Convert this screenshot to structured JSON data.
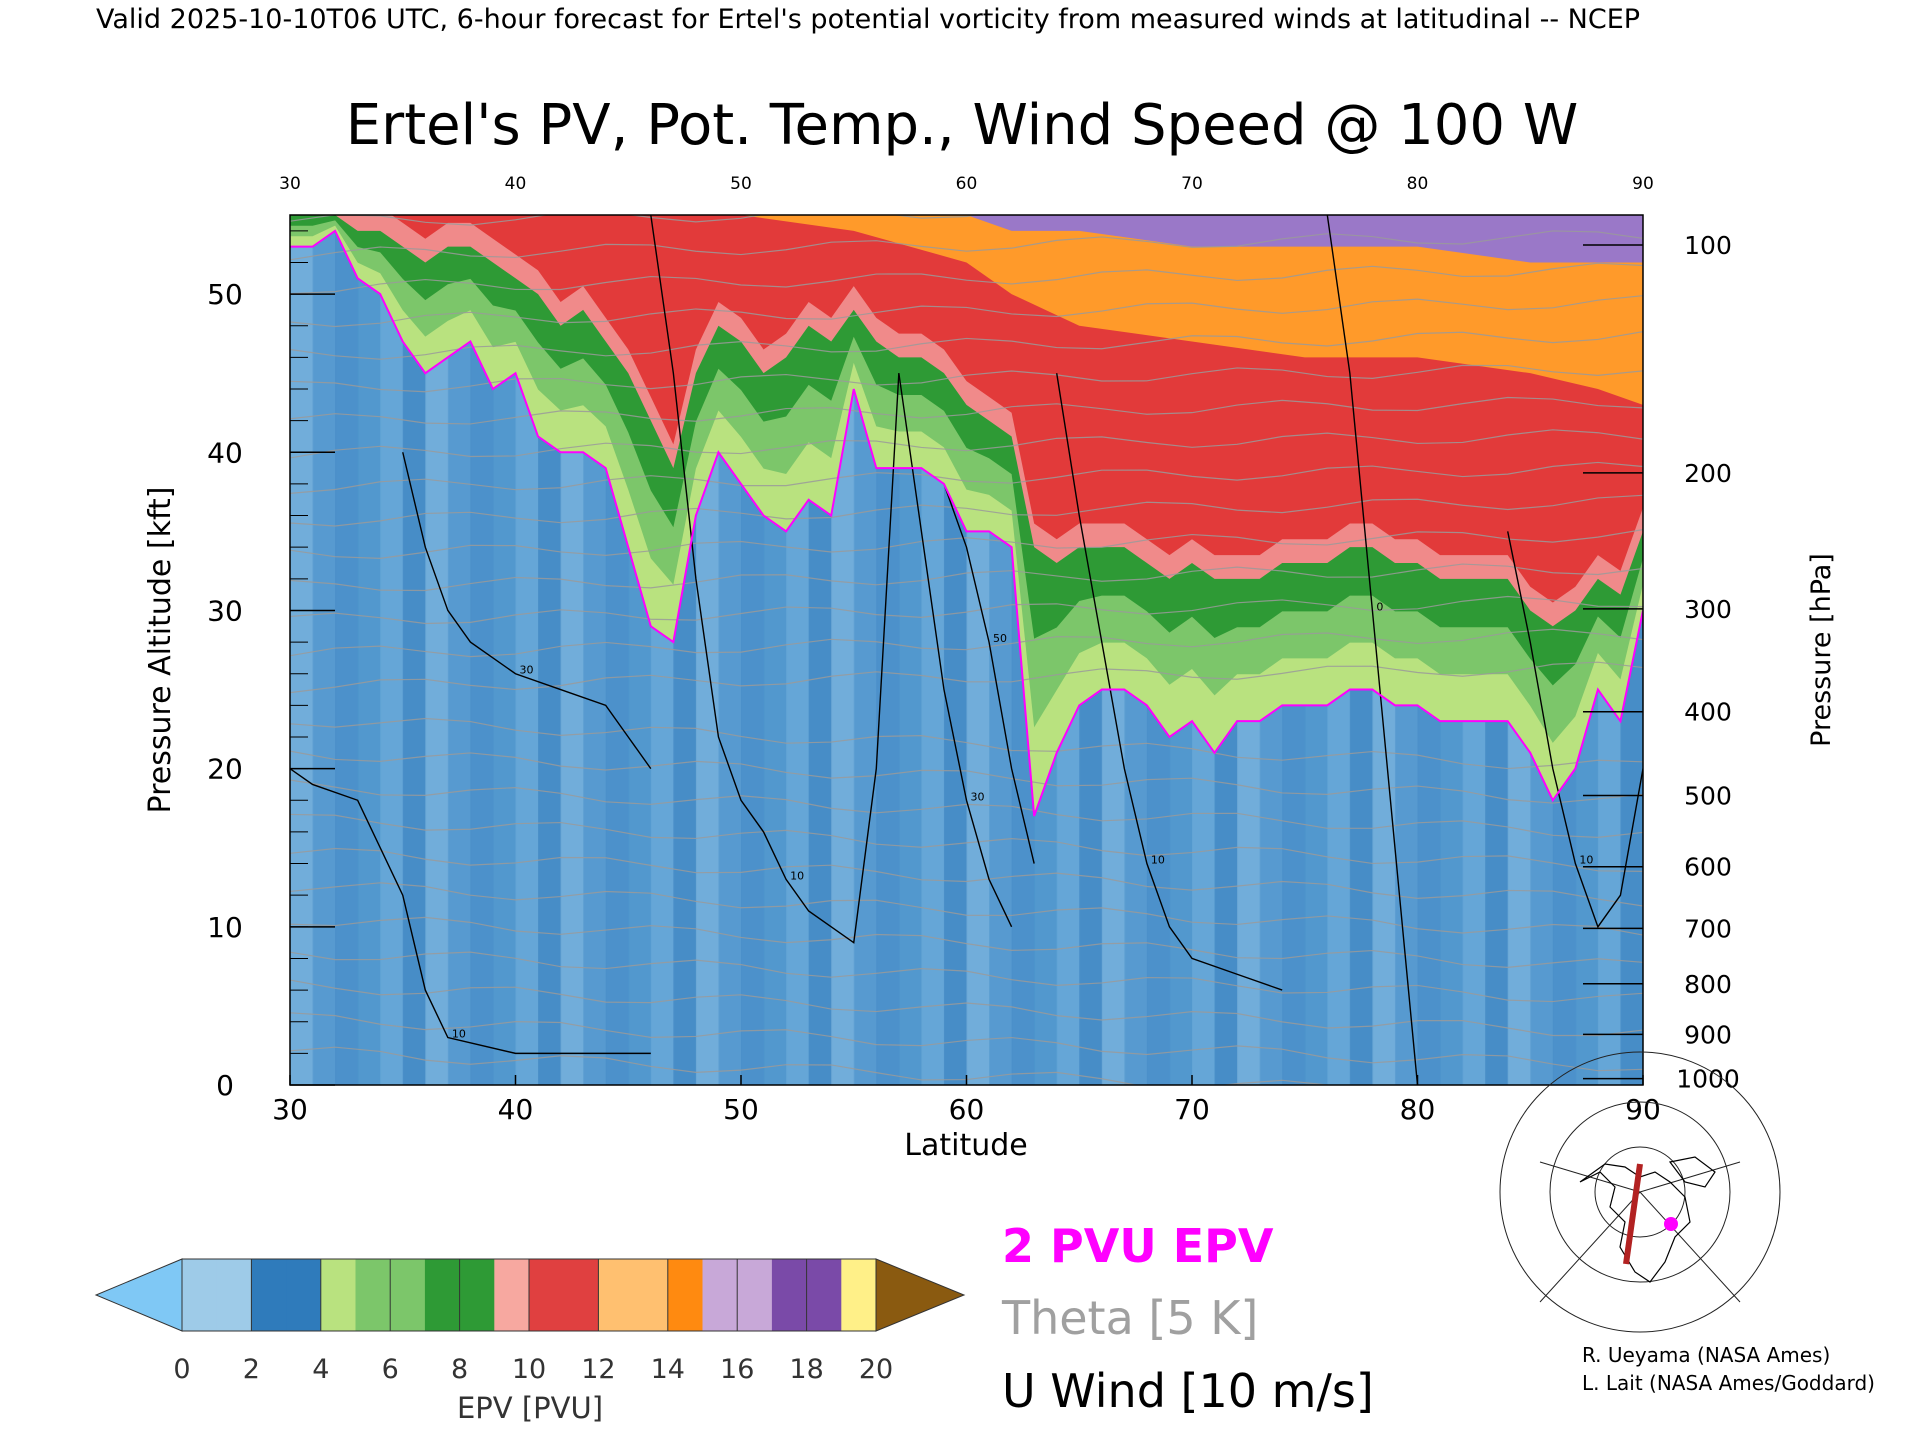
{
  "header": {
    "valid_line": "Valid 2025-10-10T06 UTC, 6-hour forecast for Ertel's potential vorticity from measured winds at latitudinal -- NCEP"
  },
  "chart_data": {
    "type": "heatmap",
    "title": "Ertel's PV, Pot. Temp., Wind Speed @ 100 W",
    "xlabel": "Latitude",
    "ylabel_left": "Pressure Altitude [kft]",
    "ylabel_right": "Pressure [hPa]",
    "xlim": [
      30,
      90
    ],
    "ylim": [
      0,
      55
    ],
    "x_ticks": [
      "30",
      "40",
      "50",
      "60",
      "70",
      "80",
      "90"
    ],
    "y_ticks": [
      {
        "v": 0,
        "label": "0"
      },
      {
        "v": 10,
        "label": "10"
      },
      {
        "v": 20,
        "label": "20"
      },
      {
        "v": 30,
        "label": "30"
      },
      {
        "v": 40,
        "label": "40"
      },
      {
        "v": 50,
        "label": "50"
      }
    ],
    "pressure_ticks": [
      {
        "label": "100",
        "kft": 53.1
      },
      {
        "label": "200",
        "kft": 38.7
      },
      {
        "label": "300",
        "kft": 30.1
      },
      {
        "label": "400",
        "kft": 23.6
      },
      {
        "label": "500",
        "kft": 18.3
      },
      {
        "label": "600",
        "kft": 13.8
      },
      {
        "label": "700",
        "kft": 9.9
      },
      {
        "label": "800",
        "kft": 6.4
      },
      {
        "label": "900",
        "kft": 3.2
      },
      {
        "label": "1000",
        "kft": 0.4
      }
    ],
    "pv_2_contour_kft": {
      "lat": [
        30,
        31,
        32,
        33,
        34,
        35,
        36,
        37,
        38,
        39,
        40,
        41,
        42,
        43,
        44,
        45,
        46,
        47,
        48,
        49,
        50,
        51,
        52,
        53,
        54,
        55,
        56,
        57,
        58,
        59,
        60,
        61,
        62,
        63,
        64,
        65,
        66,
        67,
        68,
        69,
        70,
        71,
        72,
        73,
        74,
        75,
        76,
        77,
        78,
        79,
        80,
        81,
        82,
        83,
        84,
        85,
        86,
        87,
        88,
        89,
        90
      ],
      "kft": [
        53,
        53,
        54,
        51,
        50,
        47,
        45,
        46,
        47,
        44,
        45,
        41,
        40,
        40,
        39,
        34,
        29,
        28,
        36,
        40,
        38,
        36,
        35,
        37,
        36,
        44,
        39,
        39,
        39,
        38,
        35,
        35,
        34,
        17,
        21,
        24,
        25,
        25,
        24,
        22,
        23,
        21,
        23,
        23,
        24,
        24,
        24,
        25,
        25,
        24,
        24,
        23,
        23,
        23,
        23,
        21,
        18,
        20,
        25,
        23,
        30
      ]
    },
    "tropopause_band_kft": {
      "lat": [
        30,
        31,
        32,
        33,
        34,
        35,
        36,
        37,
        38,
        39,
        40,
        41,
        42,
        43,
        44,
        45,
        46,
        47,
        48,
        49,
        50,
        51,
        52,
        53,
        54,
        55,
        56,
        57,
        58,
        59,
        60,
        61,
        62,
        63,
        64,
        65,
        66,
        67,
        68,
        69,
        70,
        71,
        72,
        73,
        74,
        75,
        76,
        77,
        78,
        79,
        80,
        81,
        82,
        83,
        84,
        85,
        86,
        87,
        88,
        89,
        90
      ],
      "top_kft": [
        55,
        55,
        55,
        54,
        54,
        53,
        52,
        53,
        53,
        52,
        51,
        50,
        48,
        49,
        47,
        45,
        42,
        39,
        45,
        48,
        47,
        45,
        46,
        48,
        47,
        49,
        47,
        46,
        46,
        45,
        43,
        42,
        41,
        34,
        33,
        34,
        34,
        34,
        33,
        32,
        33,
        32,
        32,
        32,
        33,
        33,
        33,
        34,
        34,
        33,
        33,
        32,
        32,
        32,
        32,
        30,
        29,
        30,
        32,
        31,
        35
      ]
    },
    "stratosphere_levels_kft": {
      "orange_top_lat": [
        30,
        40,
        50,
        55,
        60,
        62,
        65,
        70,
        75,
        80,
        85,
        88,
        90
      ],
      "orange_kft": [
        55,
        55,
        55,
        54,
        52,
        50,
        48,
        47,
        46,
        46,
        45,
        44,
        43
      ],
      "purple_kft": [
        56,
        56,
        56,
        56,
        55,
        54,
        54,
        53,
        53,
        53,
        52,
        52,
        52
      ]
    },
    "u_wind_contours": [
      {
        "label": "10",
        "lat": [
          30,
          31,
          33,
          35,
          36,
          37,
          40,
          42,
          44,
          46
        ],
        "kft": [
          20,
          19,
          18,
          12,
          6,
          3,
          2,
          2,
          2,
          2
        ]
      },
      {
        "label": "30",
        "lat": [
          35,
          36,
          37,
          38,
          40,
          42,
          44,
          45,
          46
        ],
        "kft": [
          40,
          34,
          30,
          28,
          26,
          25,
          24,
          22,
          20
        ]
      },
      {
        "label": "10",
        "lat": [
          46,
          47,
          48,
          49,
          50,
          51,
          52,
          53,
          54,
          55,
          56,
          57
        ],
        "kft": [
          55,
          45,
          32,
          22,
          18,
          16,
          13,
          11,
          10,
          9,
          20,
          45
        ]
      },
      {
        "label": "30",
        "lat": [
          57,
          58,
          59,
          60,
          61,
          62
        ],
        "kft": [
          45,
          35,
          25,
          18,
          13,
          10
        ]
      },
      {
        "label": "50",
        "lat": [
          59,
          60,
          61,
          62,
          63
        ],
        "kft": [
          38,
          34,
          28,
          20,
          14
        ]
      },
      {
        "label": "10",
        "lat": [
          64,
          65,
          66,
          67,
          68,
          69,
          70,
          72,
          74
        ],
        "kft": [
          45,
          36,
          28,
          20,
          14,
          10,
          8,
          7,
          6
        ]
      },
      {
        "label": "0",
        "lat": [
          76,
          77,
          78,
          79,
          80
        ],
        "kft": [
          55,
          45,
          30,
          15,
          0
        ]
      },
      {
        "label": "10",
        "lat": [
          84,
          85,
          86,
          87,
          88,
          89,
          90
        ],
        "kft": [
          35,
          28,
          20,
          14,
          10,
          12,
          20
        ]
      }
    ],
    "colorbar": {
      "label": "EPV [PVU]",
      "tick_labels": [
        "0",
        "2",
        "4",
        "6",
        "8",
        "10",
        "12",
        "14",
        "16",
        "18",
        "20"
      ],
      "colors": [
        "#7fc8f5",
        "#9ecbe8",
        "#2f7bbb",
        "#b9e27f",
        "#7cc66a",
        "#2e9a35",
        "#f7a8a0",
        "#e04040",
        "#ffc070",
        "#ff8a10",
        "#c8a8d8",
        "#7a4aa8",
        "#fff088",
        "#8a5a10"
      ]
    }
  },
  "legend": {
    "epv_label": "2 PVU EPV",
    "theta_label": "Theta [5 K]",
    "wind_label": "U Wind [10 m/s]",
    "epv_color": "#ff00ff",
    "theta_color": "#a0a0a0"
  },
  "credits": {
    "line1": "R. Ueyama (NASA Ames)",
    "line2": "L. Lait (NASA Ames/Goddard)"
  },
  "inset_map": {
    "marker_color": "#ff00ff",
    "section_color": "#b22222"
  }
}
